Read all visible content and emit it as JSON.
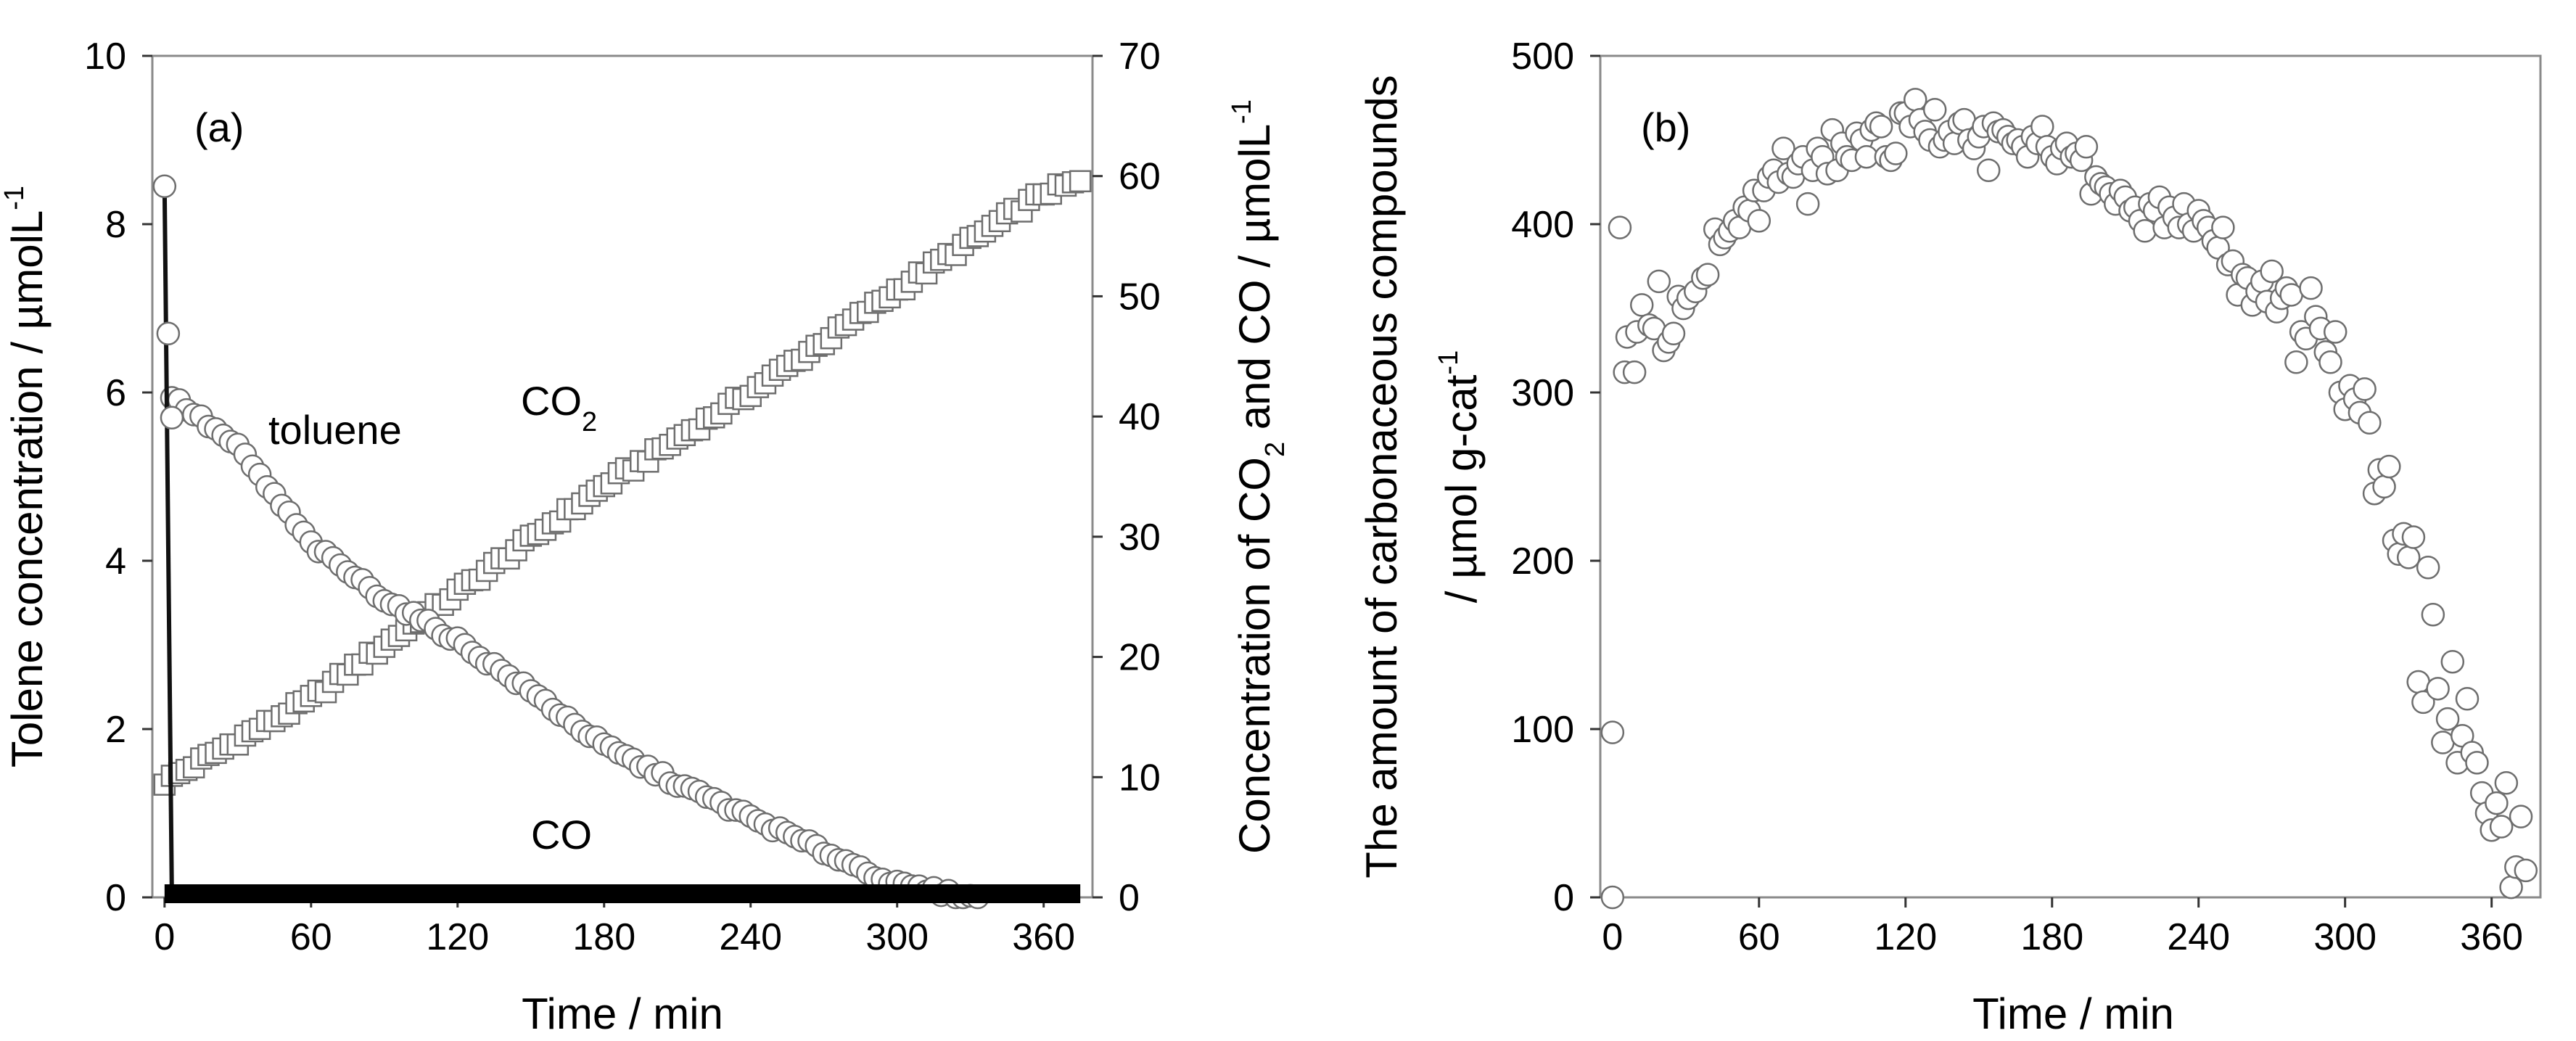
{
  "chart_data": [
    {
      "type": "scatter",
      "panel_label": "(a)",
      "xlabel": "Time / min",
      "ylabel_left": "Tolene concentration / µmolL",
      "ylabel_left_sup": "-1",
      "ylabel_right_parts": [
        "Concentration of CO",
        "2",
        " and CO / µmolL",
        "-1"
      ],
      "xlim": [
        -5,
        380
      ],
      "ylim_left": [
        0,
        10
      ],
      "ylim_right": [
        0,
        70
      ],
      "x_ticks": [
        "0",
        "60",
        "120",
        "180",
        "240",
        "300",
        "360"
      ],
      "y_ticks_left": [
        "0",
        "2",
        "4",
        "6",
        "8",
        "10"
      ],
      "y_ticks_right": [
        "0",
        "10",
        "20",
        "30",
        "40",
        "50",
        "60",
        "70"
      ],
      "annotations": {
        "toluene": "toluene",
        "co2_main": "CO",
        "co2_sub": "2",
        "co": "CO"
      },
      "series": [
        {
          "name": "toluene",
          "axis": "left",
          "marker": "circle",
          "initial_points": [
            [
              0,
              8.45
            ],
            [
              1.5,
              6.7
            ],
            [
              3,
              5.7
            ]
          ],
          "curve": [
            [
              3,
              5.95
            ],
            [
              30,
              5.35
            ],
            [
              60,
              4.2
            ],
            [
              90,
              3.55
            ],
            [
              120,
              3.05
            ],
            [
              150,
              2.45
            ],
            [
              180,
              1.8
            ],
            [
              210,
              1.35
            ],
            [
              240,
              0.95
            ],
            [
              270,
              0.55
            ],
            [
              300,
              0.15
            ],
            [
              330,
              0.0
            ]
          ],
          "step": 3,
          "x_range": [
            3,
            335
          ],
          "line_segment": [
            [
              0,
              8.45
            ],
            [
              3,
              0.0
            ]
          ]
        },
        {
          "name": "CO2",
          "axis": "right",
          "marker": "square",
          "curve": [
            [
              0,
              9.6
            ],
            [
              60,
              16.5
            ],
            [
              120,
              25.4
            ],
            [
              180,
              34.2
            ],
            [
              240,
              42.0
            ],
            [
              300,
              50.5
            ],
            [
              360,
              58.6
            ],
            [
              375,
              59.5
            ]
          ],
          "step": 3,
          "x_range": [
            0,
            375
          ]
        },
        {
          "name": "CO",
          "axis": "right",
          "marker": "line",
          "curve": [
            [
              0,
              0.3
            ],
            [
              375,
              0.3
            ]
          ]
        }
      ]
    },
    {
      "type": "scatter",
      "panel_label": "(b)",
      "xlabel": "Time / min",
      "ylabel_line1": "The amount of carbonaceous compounds",
      "ylabel_line2": "/ µmol g-cat",
      "ylabel_line2_sup": "-1",
      "xlim": [
        -5,
        380
      ],
      "ylim": [
        0,
        500
      ],
      "x_ticks": [
        "0",
        "60",
        "120",
        "180",
        "240",
        "300",
        "360"
      ],
      "y_ticks": [
        "0",
        "100",
        "200",
        "300",
        "400",
        "500"
      ],
      "series": [
        {
          "name": "carbonaceous compounds",
          "marker": "circle",
          "points": [
            [
              0,
              0
            ],
            [
              0,
              98
            ],
            [
              3,
              398
            ],
            [
              5,
              312
            ],
            [
              6,
              333
            ],
            [
              9,
              312
            ],
            [
              10,
              336
            ],
            [
              12,
              352
            ],
            [
              15,
              340
            ],
            [
              17,
              338
            ],
            [
              19,
              366
            ],
            [
              21,
              325
            ],
            [
              23,
              330
            ],
            [
              25,
              335
            ],
            [
              27,
              357
            ],
            [
              29,
              350
            ],
            [
              31,
              356
            ],
            [
              34,
              360
            ],
            [
              37,
              368
            ],
            [
              39,
              370
            ],
            [
              42,
              397
            ],
            [
              44,
              388
            ],
            [
              46,
              392
            ],
            [
              48,
              396
            ],
            [
              50,
              402
            ],
            [
              52,
              398
            ],
            [
              54,
              410
            ],
            [
              56,
              408
            ],
            [
              58,
              420
            ],
            [
              60,
              402
            ],
            [
              62,
              420
            ],
            [
              64,
              428
            ],
            [
              66,
              432
            ],
            [
              68,
              425
            ],
            [
              70,
              445
            ],
            [
              72,
              430
            ],
            [
              74,
              428
            ],
            [
              76,
              436
            ],
            [
              78,
              440
            ],
            [
              80,
              412
            ],
            [
              82,
              432
            ],
            [
              84,
              445
            ],
            [
              86,
              440
            ],
            [
              88,
              430
            ],
            [
              90,
              456
            ],
            [
              92,
              432
            ],
            [
              94,
              448
            ],
            [
              96,
              440
            ],
            [
              98,
              438
            ],
            [
              100,
              454
            ],
            [
              102,
              450
            ],
            [
              104,
              440
            ],
            [
              106,
              456
            ],
            [
              108,
              460
            ],
            [
              110,
              458
            ],
            [
              112,
              440
            ],
            [
              114,
              438
            ],
            [
              116,
              442
            ],
            [
              118,
              466
            ],
            [
              120,
              466
            ],
            [
              122,
              458
            ],
            [
              124,
              474
            ],
            [
              126,
              462
            ],
            [
              128,
              455
            ],
            [
              130,
              450
            ],
            [
              132,
              468
            ],
            [
              134,
              446
            ],
            [
              136,
              450
            ],
            [
              138,
              455
            ],
            [
              140,
              448
            ],
            [
              142,
              460
            ],
            [
              144,
              462
            ],
            [
              146,
              450
            ],
            [
              148,
              445
            ],
            [
              150,
              452
            ],
            [
              152,
              458
            ],
            [
              154,
              432
            ],
            [
              156,
              460
            ],
            [
              158,
              455
            ],
            [
              160,
              456
            ],
            [
              162,
              452
            ],
            [
              164,
              448
            ],
            [
              166,
              450
            ],
            [
              168,
              446
            ],
            [
              170,
              440
            ],
            [
              172,
              452
            ],
            [
              174,
              448
            ],
            [
              176,
              458
            ],
            [
              178,
              446
            ],
            [
              180,
              440
            ],
            [
              182,
              436
            ],
            [
              184,
              445
            ],
            [
              186,
              448
            ],
            [
              188,
              440
            ],
            [
              190,
              442
            ],
            [
              192,
              438
            ],
            [
              194,
              446
            ],
            [
              196,
              418
            ],
            [
              198,
              428
            ],
            [
              200,
              424
            ],
            [
              202,
              422
            ],
            [
              204,
              418
            ],
            [
              206,
              412
            ],
            [
              208,
              420
            ],
            [
              210,
              416
            ],
            [
              212,
              408
            ],
            [
              214,
              410
            ],
            [
              216,
              402
            ],
            [
              218,
              396
            ],
            [
              220,
              412
            ],
            [
              222,
              408
            ],
            [
              224,
              416
            ],
            [
              226,
              398
            ],
            [
              228,
              410
            ],
            [
              230,
              404
            ],
            [
              232,
              398
            ],
            [
              234,
              412
            ],
            [
              236,
              400
            ],
            [
              238,
              396
            ],
            [
              240,
              408
            ],
            [
              242,
              402
            ],
            [
              244,
              398
            ],
            [
              246,
              390
            ],
            [
              248,
              386
            ],
            [
              250,
              398
            ],
            [
              252,
              376
            ],
            [
              254,
              378
            ],
            [
              256,
              358
            ],
            [
              258,
              370
            ],
            [
              260,
              368
            ],
            [
              262,
              352
            ],
            [
              264,
              360
            ],
            [
              266,
              366
            ],
            [
              268,
              354
            ],
            [
              270,
              372
            ],
            [
              272,
              348
            ],
            [
              274,
              356
            ],
            [
              276,
              362
            ],
            [
              278,
              358
            ],
            [
              280,
              318
            ],
            [
              282,
              336
            ],
            [
              284,
              332
            ],
            [
              286,
              362
            ],
            [
              288,
              345
            ],
            [
              290,
              338
            ],
            [
              292,
              324
            ],
            [
              294,
              318
            ],
            [
              296,
              336
            ],
            [
              298,
              300
            ],
            [
              300,
              290
            ],
            [
              302,
              304
            ],
            [
              304,
              296
            ],
            [
              306,
              288
            ],
            [
              308,
              302
            ],
            [
              310,
              282
            ],
            [
              312,
              240
            ],
            [
              314,
              254
            ],
            [
              316,
              244
            ],
            [
              318,
              256
            ],
            [
              320,
              212
            ],
            [
              322,
              204
            ],
            [
              324,
              216
            ],
            [
              326,
              202
            ],
            [
              328,
              214
            ],
            [
              330,
              128
            ],
            [
              332,
              116
            ],
            [
              334,
              196
            ],
            [
              336,
              168
            ],
            [
              338,
              124
            ],
            [
              340,
              92
            ],
            [
              342,
              106
            ],
            [
              344,
              140
            ],
            [
              346,
              80
            ],
            [
              348,
              96
            ],
            [
              350,
              118
            ],
            [
              352,
              86
            ],
            [
              354,
              80
            ],
            [
              356,
              62
            ],
            [
              358,
              50
            ],
            [
              360,
              40
            ],
            [
              362,
              56
            ],
            [
              364,
              42
            ],
            [
              366,
              68
            ],
            [
              368,
              6
            ],
            [
              370,
              18
            ],
            [
              372,
              48
            ],
            [
              374,
              16
            ]
          ]
        }
      ]
    }
  ]
}
